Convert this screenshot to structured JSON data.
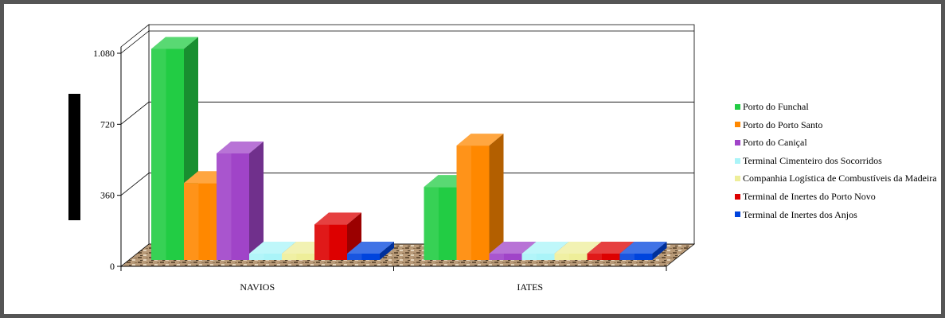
{
  "chart_data": {
    "type": "bar",
    "title": "",
    "xlabel": "",
    "ylabel": "",
    "ylim": [
      0,
      1080
    ],
    "yticks": [
      0,
      360,
      720,
      1080
    ],
    "ytick_labels": [
      "0",
      "360",
      "720",
      "1.080"
    ],
    "categories": [
      "NAVIOS",
      "IATES"
    ],
    "grid": true,
    "legend_position": "right",
    "series": [
      {
        "name": "Porto do Funchal",
        "color": "#22cc44",
        "values": [
          1070,
          370
        ]
      },
      {
        "name": "Porto do Porto Santo",
        "color": "#ff8800",
        "values": [
          390,
          580
        ]
      },
      {
        "name": "Porto do Caniçal",
        "color": "#a044c8",
        "values": [
          540,
          0
        ]
      },
      {
        "name": "Terminal Cimenteiro dos Socorridos",
        "color": "#aaf4f8",
        "values": [
          30,
          0
        ]
      },
      {
        "name": "Companhia Logística de Combustíveis da Madeira",
        "color": "#eeee99",
        "values": [
          30,
          0
        ]
      },
      {
        "name": "Terminal de Inertes do Porto Novo",
        "color": "#dd0000",
        "values": [
          180,
          0
        ]
      },
      {
        "name": "Terminal de Inertes dos Anjos",
        "color": "#0044dd",
        "values": [
          30,
          0
        ]
      }
    ]
  }
}
